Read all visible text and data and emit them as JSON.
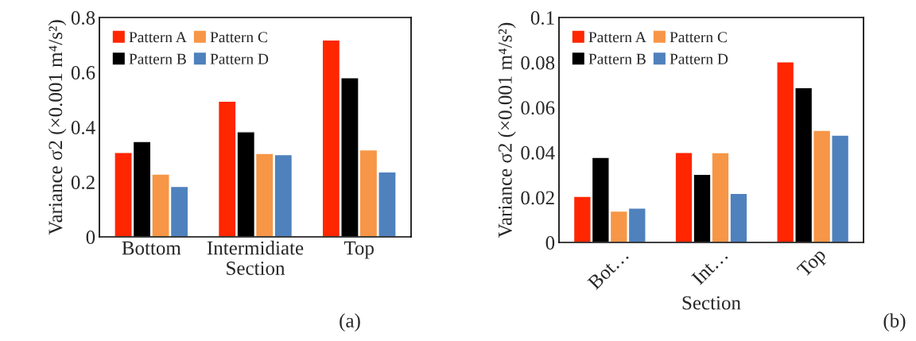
{
  "chart_data": [
    {
      "type": "bar",
      "categories": [
        "Bottom",
        "Intermidiate",
        "Top"
      ],
      "xlabel": "Section",
      "ylabel": "Variance σ2 (×0.001 m⁴/s²)",
      "ylim": [
        0,
        0.8
      ],
      "yticks": [
        0,
        0.2,
        0.4,
        0.6,
        0.8
      ],
      "grid": false,
      "legend": "top left",
      "annotations": [
        "(a)"
      ],
      "series": [
        {
          "name": "Pattern A",
          "color": "#ff2600",
          "values": [
            0.308,
            0.495,
            0.718
          ]
        },
        {
          "name": "Pattern B",
          "color": "#000000",
          "values": [
            0.348,
            0.383,
            0.58
          ]
        },
        {
          "name": "Pattern C",
          "color": "#f79646",
          "values": [
            0.229,
            0.304,
            0.317
          ]
        },
        {
          "name": "Pattern D",
          "color": "#4f81bd",
          "values": [
            0.184,
            0.3,
            0.237
          ]
        }
      ]
    },
    {
      "type": "bar",
      "categories": [
        "Bot…",
        "Int…",
        "Top"
      ],
      "xlabel": "Section",
      "ylabel": "Variance σ2 (×0.001 m⁴/s²)",
      "ylim": [
        0,
        0.1
      ],
      "yticks": [
        0,
        0.02,
        0.04,
        0.06,
        0.08,
        0.1
      ],
      "grid": false,
      "legend": "top left",
      "annotations": [
        "(b)"
      ],
      "series": [
        {
          "name": "Pattern A",
          "color": "#ff2600",
          "values": [
            0.0205,
            0.04,
            0.0803
          ]
        },
        {
          "name": "Pattern B",
          "color": "#000000",
          "values": [
            0.0378,
            0.0303,
            0.0688
          ]
        },
        {
          "name": "Pattern C",
          "color": "#f79646",
          "values": [
            0.0139,
            0.0399,
            0.0498
          ]
        },
        {
          "name": "Pattern D",
          "color": "#4f81bd",
          "values": [
            0.0153,
            0.0218,
            0.0477
          ]
        }
      ]
    }
  ]
}
